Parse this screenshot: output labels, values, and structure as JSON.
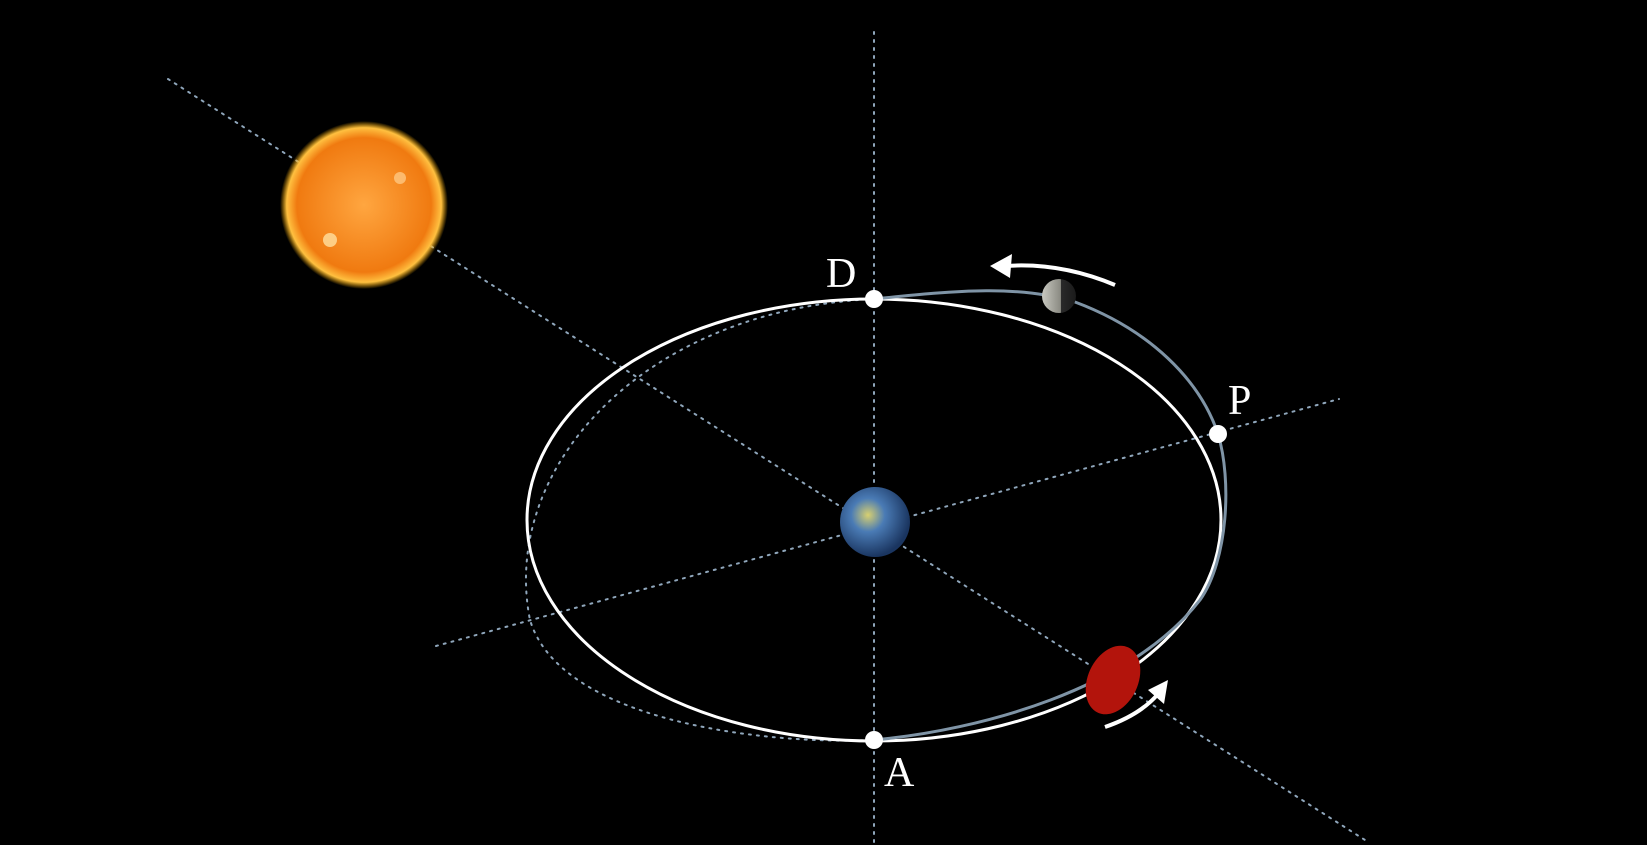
{
  "points": [
    {
      "label": "D"
    },
    {
      "label": "P"
    },
    {
      "label": "A"
    }
  ]
}
